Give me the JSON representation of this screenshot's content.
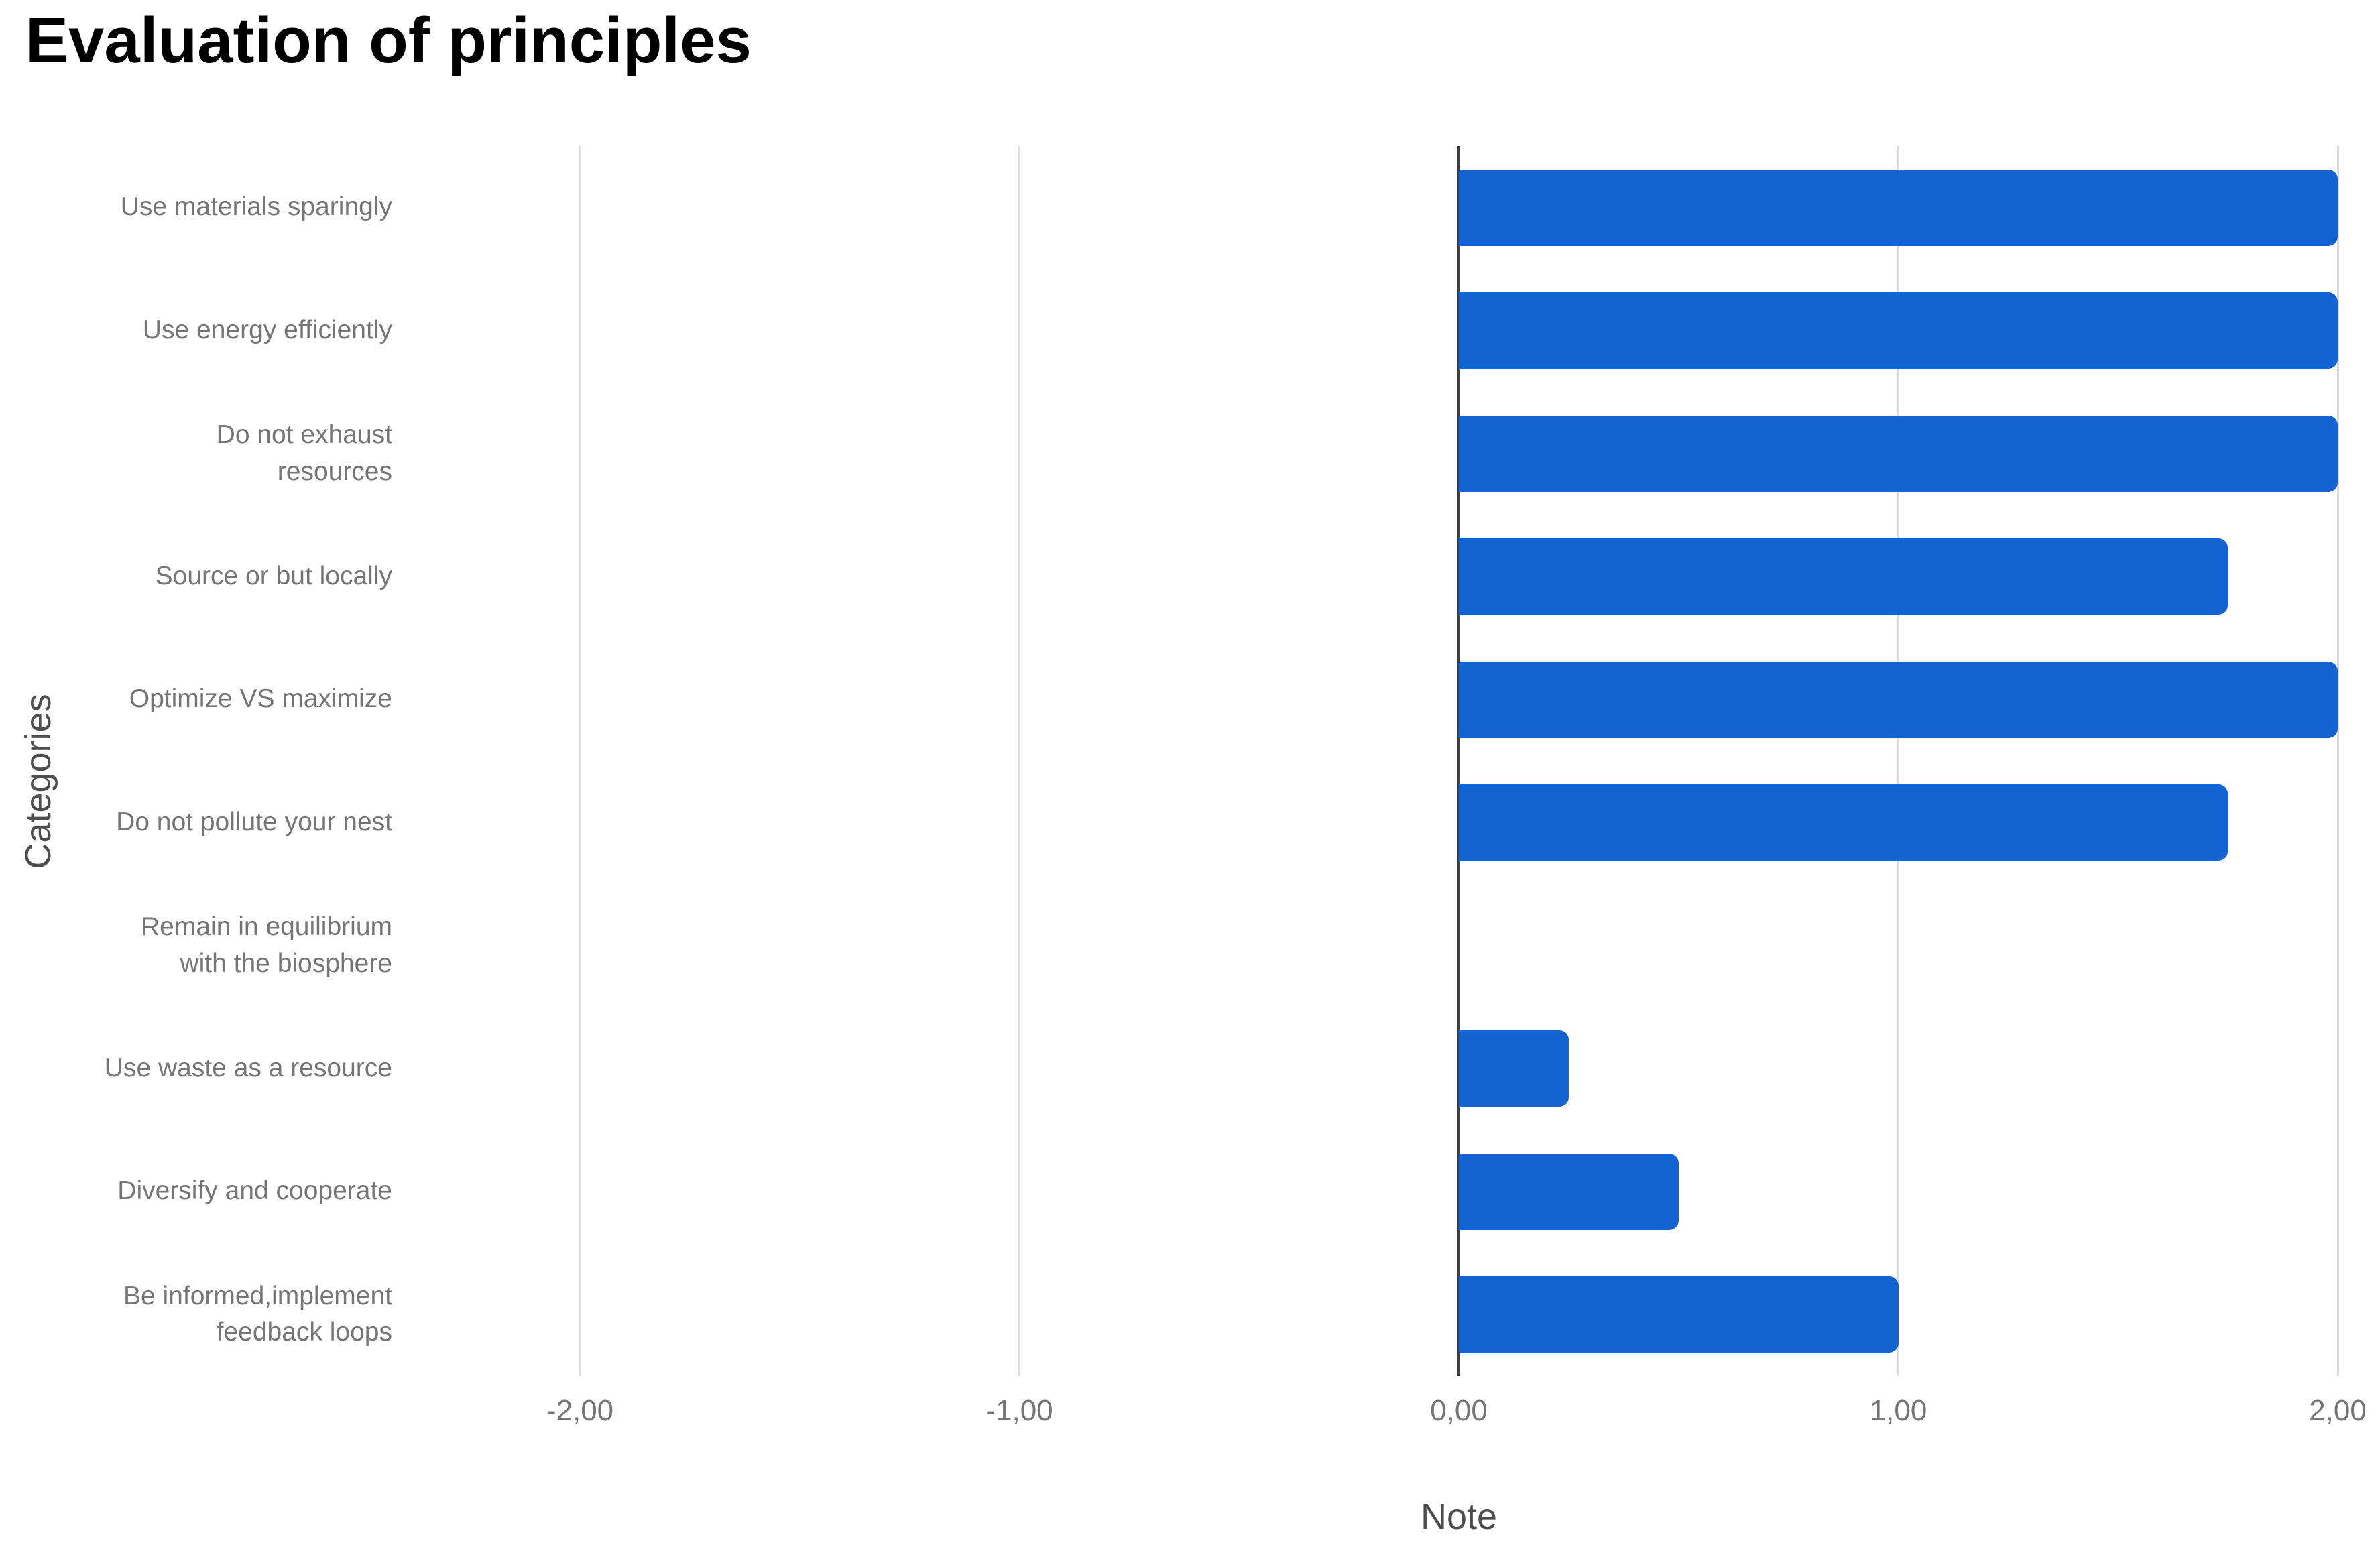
{
  "chart_data": {
    "type": "bar",
    "orientation": "horizontal",
    "title": "Evaluation of principles",
    "xlabel": "Note",
    "ylabel": "Categories",
    "categories": [
      "Use materials sparingly",
      "Use energy efficiently",
      "Do not exhaust\nresources",
      "Source or but locally",
      "Optimize VS maximize",
      "Do not pollute your nest",
      "Remain in equilibrium\nwith the biosphere",
      "Use waste as a resource",
      "Diversify and cooperate",
      "Be informed,implement\nfeedback loops"
    ],
    "values": [
      2.0,
      2.0,
      2.0,
      1.75,
      2.0,
      1.75,
      0.0,
      0.25,
      0.5,
      1.0
    ],
    "xlim": [
      -2,
      2
    ],
    "x_ticks": [
      -2,
      -1,
      0,
      1,
      2
    ],
    "x_tick_labels": [
      "-2,00",
      "-1,00",
      "0,00",
      "1,00",
      "2,00"
    ],
    "grid": "vertical-gridlines",
    "legend": "none",
    "colors": {
      "bar": "#1463d2",
      "title_text": "#000000",
      "label_text": "#757575",
      "axis_title_text": "#4d4d4d",
      "gridline": "#dcdcdc",
      "zero_axis": "#3d3d3d",
      "background": "#ffffff"
    }
  }
}
